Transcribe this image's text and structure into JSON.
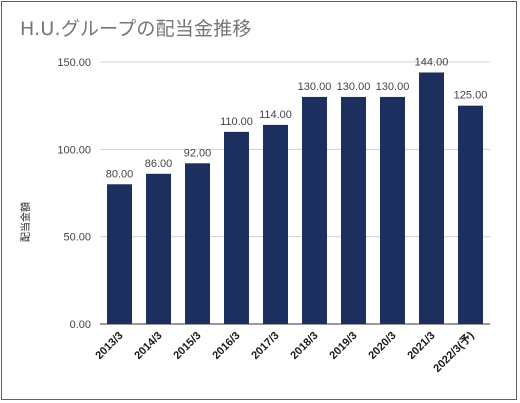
{
  "chart_data": {
    "type": "bar",
    "title": "H.U.グループの配当金推移",
    "ylabel": "配当金額",
    "xlabel": "",
    "categories": [
      "2013/3",
      "2014/3",
      "2015/3",
      "2016/3",
      "2017/3",
      "2018/3",
      "2019/3",
      "2020/3",
      "2021/3",
      "2022/3(予)"
    ],
    "values": [
      80.0,
      86.0,
      92.0,
      110.0,
      114.0,
      130.0,
      130.0,
      130.0,
      144.0,
      125.0
    ],
    "data_labels": [
      "80.00",
      "86.00",
      "92.00",
      "110.00",
      "114.00",
      "130.00",
      "130.00",
      "130.00",
      "144.00",
      "125.00"
    ],
    "yticks": [
      0,
      50,
      100,
      150
    ],
    "ytick_labels": [
      "0.00",
      "50.00",
      "100.00",
      "150.00"
    ],
    "ylim": [
      0,
      150
    ],
    "grid": true,
    "legend": "none",
    "bar_color": "#1c2f5e"
  }
}
